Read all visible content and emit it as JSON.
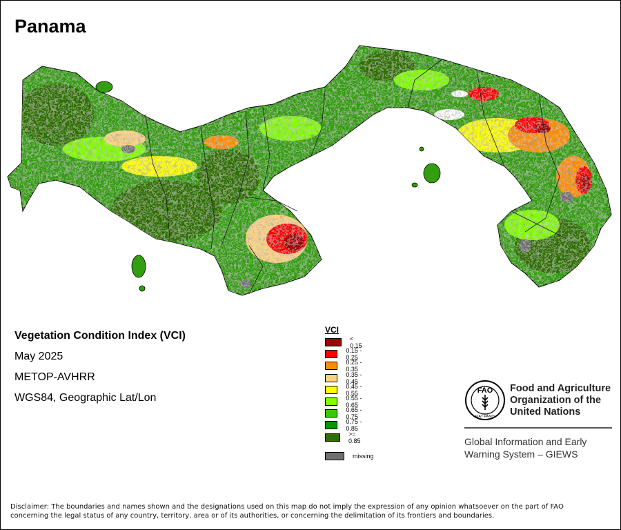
{
  "map": {
    "title": "Panama",
    "info": {
      "index_name": "Vegetation Condition Index (VCI)",
      "date": "May 2025",
      "sensor": "METOP-AVHRR",
      "projection": "WGS84, Geographic Lat/Lon"
    }
  },
  "legend": {
    "title": "VCI",
    "classes": [
      {
        "label": "< 0.15",
        "color": "#a00000"
      },
      {
        "label": "0.15 - 0.25",
        "color": "#ff0000"
      },
      {
        "label": "0.25 - 0.35",
        "color": "#ff8c00"
      },
      {
        "label": "0.35 - 0.45",
        "color": "#ffd27f"
      },
      {
        "label": "0.45 - 0.55",
        "color": "#ffff00"
      },
      {
        "label": "0.55 - 0.65",
        "color": "#80ff00"
      },
      {
        "label": "0.65 - 0.75",
        "color": "#33cc00"
      },
      {
        "label": "0.75 - 0.85",
        "color": "#009900"
      },
      {
        "label": ">= 0.85",
        "color": "#2e7000"
      }
    ],
    "missing": {
      "label": "missing",
      "color": "#707070"
    }
  },
  "organization": {
    "name_line1": "Food and Agriculture",
    "name_line2": "Organization of the",
    "name_line3": "United Nations",
    "system_line1": "Global Information and Early",
    "system_line2": "Warning System – GIEWS",
    "logo_text": "FAO",
    "logo_motto": "FIAT PANIS"
  },
  "disclaimer": {
    "line1": "Disclaimer: The boundaries and names shown and the designations used on this map do not imply the expression of any opinion whatsoever on the part of FAO",
    "line2": "concerning the legal status of any country, territory, area or of its authorities, or concerning the delimitation of its frontiers and boundaries."
  }
}
